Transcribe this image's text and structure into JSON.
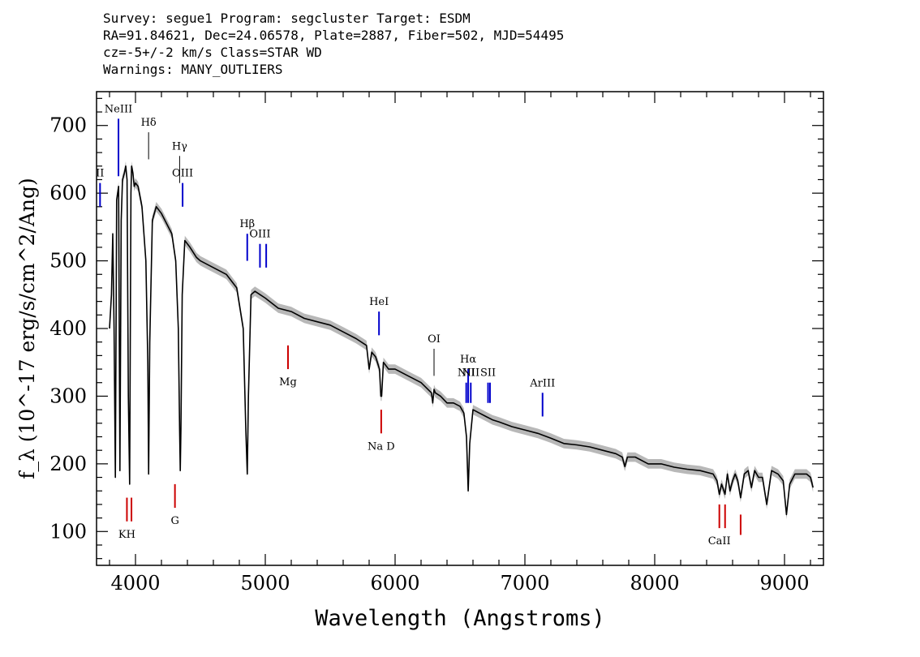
{
  "header": {
    "line1": "Survey: segue1 Program: segcluster Target: ESDM",
    "line2": "RA=91.84621, Dec=24.06578, Plate=2887, Fiber=502, MJD=54495",
    "line3": "cz=-5+/-2 km/s Class=STAR WD",
    "line4": "Warnings: MANY_OUTLIERS"
  },
  "chart_data": {
    "type": "line",
    "title": "Survey: segue1 Program: segcluster Target: ESDM",
    "xlabel": "Wavelength (Angstroms)",
    "ylabel": "f_λ (10^-17 erg/s/cm^2/Ang)",
    "xlim": [
      3700,
      9300
    ],
    "ylim": [
      50,
      750
    ],
    "xticks": [
      4000,
      5000,
      6000,
      7000,
      8000,
      9000
    ],
    "yticks": [
      100,
      200,
      300,
      400,
      500,
      600,
      700
    ],
    "grid": false,
    "series": [
      {
        "x": [
          3800,
          3815,
          3825,
          3835,
          3845,
          3855,
          3870,
          3880,
          3890,
          3900,
          3915,
          3925,
          3935,
          3945,
          3955,
          3965,
          3970,
          3980,
          3990,
          4000,
          4020,
          4050,
          4080,
          4095,
          4101,
          4110,
          4130,
          4160,
          4200,
          4240,
          4280,
          4310,
          4330,
          4340,
          4345,
          4350,
          4360,
          4380,
          4420,
          4470,
          4500,
          4600,
          4700,
          4780,
          4830,
          4850,
          4861,
          4870,
          4890,
          4920,
          4960,
          5000,
          5100,
          5200,
          5300,
          5400,
          5500,
          5600,
          5700,
          5780,
          5800,
          5820,
          5850,
          5880,
          5890,
          5896,
          5910,
          5950,
          6000,
          6100,
          6200,
          6280,
          6290,
          6300,
          6310,
          6350,
          6400,
          6450,
          6500,
          6530,
          6550,
          6563,
          6575,
          6600,
          6650,
          6700,
          6750,
          6800,
          6900,
          7000,
          7100,
          7200,
          7300,
          7400,
          7500,
          7600,
          7700,
          7750,
          7770,
          7790,
          7850,
          7950,
          8050,
          8150,
          8250,
          8350,
          8450,
          8480,
          8498,
          8515,
          8542,
          8560,
          8580,
          8600,
          8620,
          8640,
          8662,
          8690,
          8720,
          8745,
          8770,
          8800,
          8830,
          8863,
          8900,
          8950,
          8990,
          9015,
          9040,
          9080,
          9120,
          9170,
          9200,
          9220
        ],
        "y": [
          400,
          450,
          540,
          400,
          180,
          590,
          610,
          190,
          560,
          620,
          630,
          640,
          620,
          300,
          170,
          600,
          640,
          630,
          610,
          615,
          610,
          580,
          500,
          350,
          185,
          380,
          560,
          580,
          570,
          555,
          540,
          500,
          400,
          250,
          190,
          250,
          450,
          530,
          520,
          505,
          500,
          490,
          480,
          460,
          400,
          250,
          185,
          300,
          450,
          455,
          450,
          445,
          430,
          425,
          415,
          410,
          405,
          395,
          385,
          375,
          340,
          365,
          358,
          340,
          300,
          300,
          350,
          340,
          340,
          330,
          320,
          305,
          290,
          310,
          305,
          300,
          290,
          290,
          285,
          275,
          240,
          160,
          230,
          280,
          275,
          270,
          265,
          262,
          255,
          250,
          245,
          238,
          230,
          228,
          225,
          220,
          215,
          210,
          196,
          210,
          210,
          200,
          200,
          195,
          192,
          190,
          185,
          175,
          155,
          170,
          155,
          185,
          160,
          175,
          185,
          175,
          150,
          185,
          190,
          165,
          190,
          180,
          180,
          140,
          190,
          185,
          175,
          125,
          170,
          185,
          185,
          185,
          180,
          165
        ]
      }
    ],
    "line_annotations": [
      {
        "label": "NeIII",
        "wavelength": 3869,
        "color": "#0000cc",
        "y_low": 625,
        "y_high": 710
      },
      {
        "label": "II",
        "wavelength": 3727,
        "color": "#0000cc",
        "y_low": 580,
        "y_high": 615
      },
      {
        "label": "Hδ",
        "wavelength": 4101,
        "color": "#000000",
        "y_low": 650,
        "y_high": 690
      },
      {
        "label": "Hγ",
        "wavelength": 4340,
        "color": "#000000",
        "y_low": 615,
        "y_high": 655
      },
      {
        "label": "OIII",
        "wavelength": 4363,
        "color": "#0000cc",
        "y_low": 580,
        "y_high": 615
      },
      {
        "label": "Hβ",
        "wavelength": 4861,
        "color": "#0000cc",
        "y_low": 500,
        "y_high": 540
      },
      {
        "label": "OIII",
        "wavelength": 4959,
        "color": "#0000cc",
        "y_low": 490,
        "y_high": 525
      },
      {
        "label": "",
        "wavelength": 5007,
        "color": "#0000cc",
        "y_low": 490,
        "y_high": 525
      },
      {
        "label": "HeI",
        "wavelength": 5876,
        "color": "#0000cc",
        "y_low": 390,
        "y_high": 425
      },
      {
        "label": "OI",
        "wavelength": 6300,
        "color": "#000000",
        "y_low": 330,
        "y_high": 370
      },
      {
        "label": "NII",
        "wavelength": 6548,
        "color": "#0000cc",
        "y_low": 290,
        "y_high": 320
      },
      {
        "label": "Hα",
        "wavelength": 6563,
        "color": "#0000cc",
        "y_low": 290,
        "y_high": 340
      },
      {
        "label": "NII",
        "wavelength": 6583,
        "color": "#0000cc",
        "y_low": 290,
        "y_high": 320
      },
      {
        "label": "SII",
        "wavelength": 6716,
        "color": "#0000cc",
        "y_low": 290,
        "y_high": 320
      },
      {
        "label": "",
        "wavelength": 6731,
        "color": "#0000cc",
        "y_low": 290,
        "y_high": 320
      },
      {
        "label": "ArIII",
        "wavelength": 7136,
        "color": "#0000cc",
        "y_low": 270,
        "y_high": 305
      },
      {
        "label": "Mg",
        "wavelength": 5175,
        "color": "#cc0000",
        "y_low": 340,
        "y_high": 375
      },
      {
        "label": "Na D",
        "wavelength": 5893,
        "color": "#cc0000",
        "y_low": 245,
        "y_high": 280
      },
      {
        "label": "KH",
        "wavelength": 3934,
        "color": "#cc0000",
        "y_low": 115,
        "y_high": 150
      },
      {
        "label": "",
        "wavelength": 3969,
        "color": "#cc0000",
        "y_low": 115,
        "y_high": 150
      },
      {
        "label": "G",
        "wavelength": 4304,
        "color": "#cc0000",
        "y_low": 135,
        "y_high": 170
      },
      {
        "label": "CaII",
        "wavelength": 8498,
        "color": "#cc0000",
        "y_low": 105,
        "y_high": 140
      },
      {
        "label": "",
        "wavelength": 8542,
        "color": "#cc0000",
        "y_low": 105,
        "y_high": 140
      },
      {
        "label": "",
        "wavelength": 8662,
        "color": "#cc0000",
        "y_low": 95,
        "y_high": 125
      }
    ]
  }
}
